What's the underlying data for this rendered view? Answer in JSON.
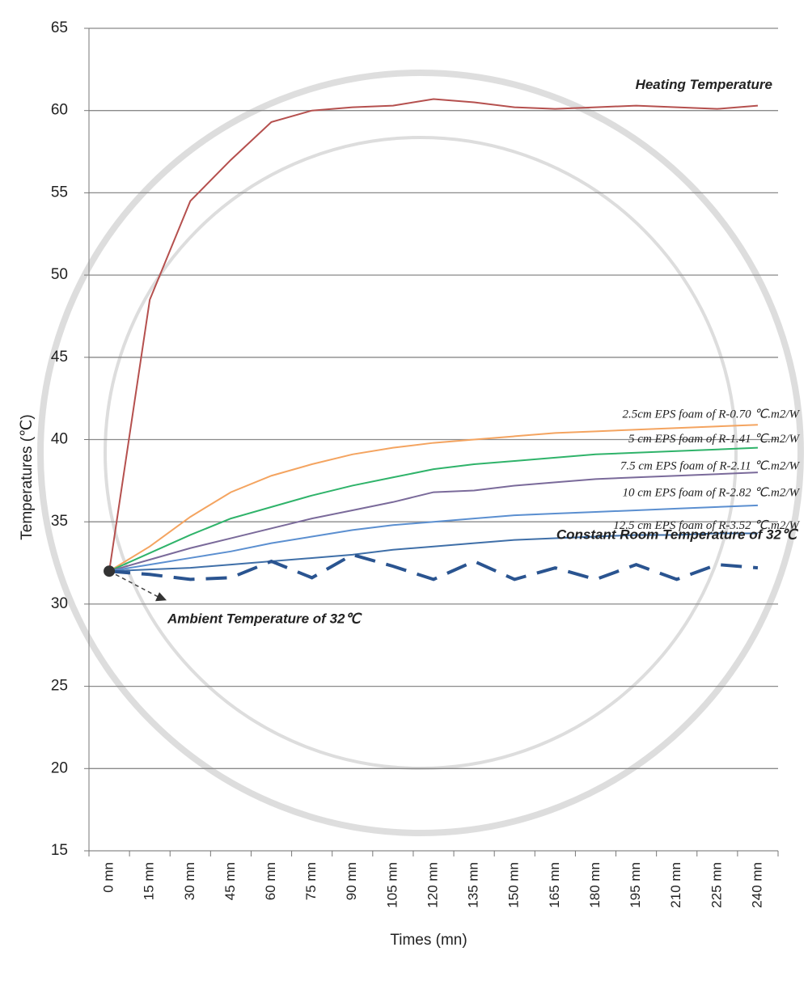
{
  "chart_data": {
    "type": "line",
    "x_label": "Times (mn)",
    "y_label": "Temperatures (℃)",
    "categories": [
      "0 mn",
      "15 mn",
      "30 mn",
      "45 mn",
      "60 mn",
      "75 mn",
      "90 mn",
      "105 mn",
      "120 mn",
      "135 mn",
      "150 mn",
      "165 mn",
      "180 mn",
      "195 mn",
      "210 mn",
      "225 mn",
      "240 mn"
    ],
    "ylim": [
      15,
      65
    ],
    "yticks": [
      15,
      20,
      25,
      30,
      35,
      40,
      45,
      50,
      55,
      60,
      65
    ],
    "grid": true,
    "annotation": "Ambient Temperature of 32℃",
    "series": [
      {
        "name": "Heating Temperature",
        "color": "#b5504e",
        "values": [
          32,
          48.5,
          54.5,
          57,
          59.3,
          60,
          60.2,
          60.3,
          60.7,
          60.5,
          60.2,
          60.1,
          60.2,
          60.3,
          60.2,
          60.1,
          60.3
        ]
      },
      {
        "name": "2.5cm EPS foam of R-0.70 ℃.m2/W",
        "color": "#f4a460",
        "values": [
          32,
          33.5,
          35.3,
          36.8,
          37.8,
          38.5,
          39.1,
          39.5,
          39.8,
          40,
          40.2,
          40.4,
          40.5,
          40.6,
          40.7,
          40.8,
          40.9
        ]
      },
      {
        "name": "5 cm EPS foam of R-1.41 ℃.m2/W",
        "color": "#2fb36a",
        "values": [
          32,
          33.1,
          34.2,
          35.2,
          35.9,
          36.6,
          37.2,
          37.7,
          38.2,
          38.5,
          38.7,
          38.9,
          39.1,
          39.2,
          39.3,
          39.4,
          39.5
        ]
      },
      {
        "name": "7.5 cm EPS foam of R-2.11 ℃.m2/W",
        "color": "#7a6a9a",
        "values": [
          32,
          32.7,
          33.4,
          34,
          34.6,
          35.2,
          35.7,
          36.2,
          36.8,
          36.9,
          37.2,
          37.4,
          37.6,
          37.7,
          37.8,
          37.9,
          38
        ]
      },
      {
        "name": "10 cm EPS foam of R-2.82 ℃.m2/W",
        "color": "#5b8fd0",
        "values": [
          32,
          32.4,
          32.8,
          33.2,
          33.7,
          34.1,
          34.5,
          34.8,
          35,
          35.2,
          35.4,
          35.5,
          35.6,
          35.7,
          35.8,
          35.9,
          36
        ]
      },
      {
        "name": "12.5 cm EPS foam of R-3.52 ℃.m2/W",
        "color": "#3f6fa8",
        "values": [
          32,
          32.1,
          32.2,
          32.4,
          32.6,
          32.8,
          33,
          33.3,
          33.5,
          33.7,
          33.9,
          34,
          34.1,
          34.2,
          34.2,
          34.3,
          34.3
        ]
      },
      {
        "name": "Constant Room Temperature of 32℃",
        "color": "#2a5490",
        "dashed": true,
        "values": [
          32,
          31.8,
          31.5,
          31.6,
          32.6,
          31.6,
          33,
          32.3,
          31.5,
          32.6,
          31.5,
          32.2,
          31.5,
          32.4,
          31.5,
          32.4,
          32.2
        ]
      }
    ]
  }
}
